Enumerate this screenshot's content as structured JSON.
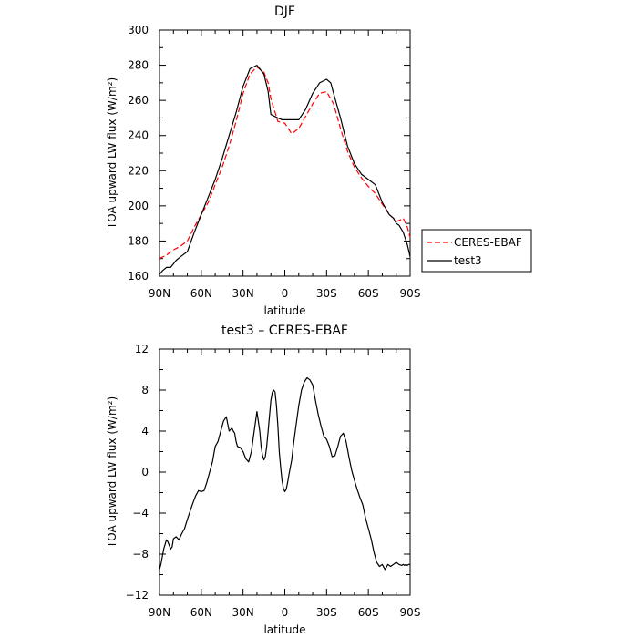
{
  "chart_data": [
    {
      "type": "line",
      "title": "DJF",
      "xlabel": "latitude",
      "ylabel": "TOA upward LW flux (W/m²)",
      "xlim": [
        90,
        -90
      ],
      "ylim": [
        160,
        300
      ],
      "x_tick_values": [
        90,
        60,
        30,
        0,
        -30,
        -60,
        -90
      ],
      "x_tick_labels": [
        "90N",
        "60N",
        "30N",
        "0",
        "30S",
        "60S",
        "90S"
      ],
      "y_ticks": [
        160,
        180,
        200,
        220,
        240,
        260,
        280,
        300
      ],
      "grid": false,
      "legend": {
        "placement": "right",
        "entries": [
          "CERES-EBAF",
          "test3"
        ]
      },
      "series": [
        {
          "name": "CERES-EBAF",
          "color": "#ff0000",
          "dash": "dashed",
          "x": [
            90,
            85,
            80,
            75,
            70,
            65,
            60,
            55,
            50,
            45,
            40,
            35,
            30,
            25,
            20,
            15,
            12,
            10,
            5,
            0,
            -5,
            -10,
            -15,
            -20,
            -25,
            -30,
            -35,
            -40,
            -45,
            -50,
            -55,
            -60,
            -65,
            -70,
            -75,
            -78,
            -80,
            -83,
            -85,
            -88,
            -90
          ],
          "y": [
            170,
            172,
            175,
            177,
            180,
            188,
            195,
            202,
            212,
            222,
            234,
            248,
            264,
            275,
            279,
            276,
            270,
            261,
            248,
            247,
            241,
            244,
            251,
            258,
            264,
            265,
            258,
            244,
            231,
            222,
            216,
            211,
            207,
            201,
            195,
            193,
            191,
            192,
            193,
            188,
            182
          ]
        },
        {
          "name": "test3",
          "color": "#000000",
          "dash": "solid",
          "x": [
            90,
            88,
            85,
            82,
            80,
            78,
            75,
            70,
            65,
            60,
            55,
            50,
            45,
            40,
            35,
            30,
            25,
            20,
            15,
            12,
            10,
            5,
            2,
            0,
            -5,
            -10,
            -15,
            -20,
            -25,
            -30,
            -33,
            -35,
            -40,
            -45,
            -50,
            -55,
            -60,
            -65,
            -70,
            -75,
            -78,
            -80,
            -82,
            -85,
            -88,
            -90
          ],
          "y": [
            161,
            163,
            165,
            165,
            167,
            169,
            171,
            174,
            185,
            195,
            205,
            215,
            227,
            240,
            253,
            268,
            278,
            280,
            275,
            265,
            252,
            250,
            249,
            249,
            249,
            249,
            255,
            264,
            270,
            272,
            270,
            264,
            250,
            234,
            224,
            218,
            215,
            212,
            202,
            195,
            193,
            190,
            189,
            185,
            178,
            171
          ]
        }
      ]
    },
    {
      "type": "line",
      "title": "test3 – CERES-EBAF",
      "xlabel": "latitude",
      "ylabel": "TOA upward LW flux (W/m²)",
      "xlim": [
        90,
        -90
      ],
      "ylim": [
        -12,
        12
      ],
      "x_tick_values": [
        90,
        60,
        30,
        0,
        -30,
        -60,
        -90
      ],
      "x_tick_labels": [
        "90N",
        "60N",
        "30N",
        "0",
        "30S",
        "60S",
        "90S"
      ],
      "y_ticks": [
        -12,
        -8,
        -4,
        0,
        4,
        8,
        12
      ],
      "y_tick_labels": [
        "−12",
        "−8",
        "−4",
        "0",
        "4",
        "8",
        "12"
      ],
      "grid": false,
      "series": [
        {
          "color": "#000000",
          "dash": "solid",
          "x": [
            90,
            89,
            87,
            85,
            84,
            82,
            81,
            80,
            78,
            76,
            74,
            72,
            70,
            68,
            66,
            64,
            62,
            60,
            58,
            56,
            54,
            52,
            50,
            48,
            46,
            44,
            42,
            40,
            38,
            37,
            36,
            35,
            34,
            32,
            30,
            28,
            26,
            24,
            22,
            20,
            18,
            17,
            16,
            15,
            14,
            13,
            12,
            11,
            10,
            9,
            8,
            7,
            6,
            5,
            4,
            3,
            2,
            1,
            0,
            -1,
            -2,
            -3,
            -4,
            -5,
            -6,
            -8,
            -10,
            -12,
            -14,
            -16,
            -18,
            -20,
            -22,
            -24,
            -26,
            -28,
            -30,
            -32,
            -33,
            -34,
            -36,
            -38,
            -40,
            -42,
            -44,
            -46,
            -48,
            -50,
            -52,
            -54,
            -56,
            -58,
            -60,
            -62,
            -64,
            -66,
            -68,
            -70,
            -72,
            -74,
            -76,
            -78,
            -80,
            -82,
            -84,
            -85,
            -86,
            -87,
            -88,
            -89,
            -90
          ],
          "y": [
            -9.5,
            -9.0,
            -7.5,
            -6.6,
            -6.8,
            -7.5,
            -7.3,
            -6.5,
            -6.3,
            -6.6,
            -6.0,
            -5.5,
            -4.6,
            -3.8,
            -3.0,
            -2.3,
            -1.8,
            -1.9,
            -1.8,
            -1.0,
            0.0,
            1.0,
            2.5,
            3.0,
            4.0,
            5.0,
            5.4,
            4.0,
            4.3,
            4.0,
            3.8,
            3.0,
            2.5,
            2.4,
            2.0,
            1.3,
            1.0,
            2.0,
            4.0,
            5.9,
            4.0,
            2.5,
            1.6,
            1.2,
            1.5,
            2.5,
            4.0,
            5.5,
            7.0,
            7.8,
            8.0,
            7.8,
            6.5,
            4.5,
            2.0,
            0.5,
            -0.8,
            -1.6,
            -1.9,
            -1.7,
            -1.0,
            -0.2,
            0.5,
            1.2,
            2.5,
            4.5,
            6.5,
            8.0,
            8.8,
            9.2,
            9.0,
            8.5,
            7.0,
            5.6,
            4.5,
            3.5,
            3.2,
            2.5,
            2.0,
            1.5,
            1.6,
            2.5,
            3.5,
            3.8,
            3.0,
            1.5,
            0.2,
            -0.8,
            -1.7,
            -2.5,
            -3.2,
            -4.5,
            -5.5,
            -6.5,
            -7.8,
            -8.8,
            -9.2,
            -9.0,
            -9.5,
            -9.0,
            -9.2,
            -9.0,
            -8.8,
            -9.0,
            -9.1,
            -9.0,
            -9.1,
            -9.0,
            -9.1,
            -9.0,
            -9.0
          ]
        }
      ]
    }
  ]
}
